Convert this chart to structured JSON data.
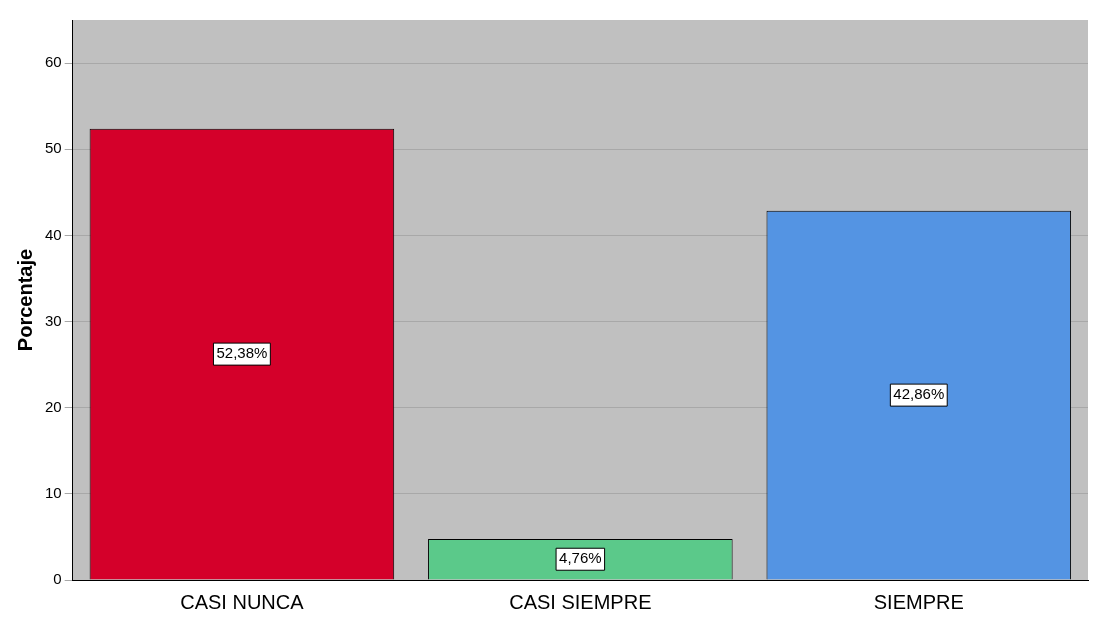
{
  "chart_data": {
    "type": "bar",
    "ylabel": "Porcentaje",
    "categories": [
      "CASI NUNCA",
      "CASI SIEMPRE",
      "SIEMPRE"
    ],
    "values": [
      52.38,
      4.76,
      42.86
    ],
    "colors": [
      "#d4002a",
      "#5bc98a",
      "#5494e3"
    ],
    "value_labels": [
      "52,38%",
      "4,76%",
      "42,86%"
    ],
    "ylim": [
      0,
      65
    ],
    "yticks": [
      0,
      10,
      20,
      30,
      40,
      50,
      60
    ],
    "grid": "y",
    "legend": false
  }
}
